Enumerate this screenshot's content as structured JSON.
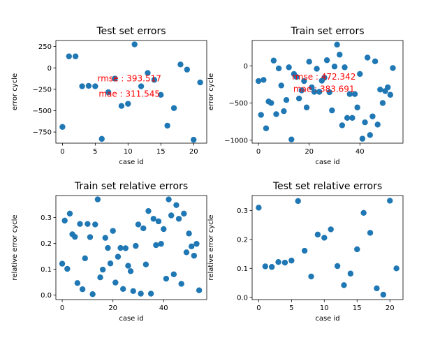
{
  "chart_data": [
    {
      "type": "scatter",
      "title": "Test set errors",
      "xlabel": "case id",
      "ylabel": "error cycle",
      "xlim": [
        -1,
        22
      ],
      "ylim": [
        -880,
        320
      ],
      "xticks": [
        0,
        5,
        10,
        15,
        20
      ],
      "yticks": [
        250,
        0,
        -250,
        -500,
        -750
      ],
      "color": "#1f77b4",
      "annotations": [
        {
          "text": "rmse : 393.517",
          "x": 10.2,
          "y": -120,
          "color": "#ff0000"
        },
        {
          "text": "mae : 311.545",
          "x": 10.2,
          "y": -300,
          "color": "#ff0000"
        }
      ],
      "points": [
        [
          0,
          -690
        ],
        [
          1,
          135
        ],
        [
          2,
          135
        ],
        [
          3,
          -215
        ],
        [
          4,
          -210
        ],
        [
          5,
          -215
        ],
        [
          6,
          -830
        ],
        [
          7,
          -285
        ],
        [
          8,
          -125
        ],
        [
          9,
          -445
        ],
        [
          10,
          -420
        ],
        [
          11,
          275
        ],
        [
          12,
          -215
        ],
        [
          13,
          -60
        ],
        [
          14,
          -140
        ],
        [
          15,
          -315
        ],
        [
          16,
          -675
        ],
        [
          17,
          -470
        ],
        [
          18,
          40
        ],
        [
          19,
          -20
        ],
        [
          20,
          -840
        ],
        [
          21,
          -170
        ]
      ]
    },
    {
      "type": "scatter",
      "title": "Train set errors",
      "xlabel": "case id",
      "ylabel": "error cycle",
      "xlim": [
        -2.5,
        57
      ],
      "ylim": [
        -1040,
        340
      ],
      "xticks": [
        0,
        20,
        40
      ],
      "yticks": [
        0,
        -500,
        -1000
      ],
      "color": "#1f77b4",
      "annotations": [
        {
          "text": "rmse : 472.342",
          "x": 25.8,
          "y": -145,
          "color": "#ff0000"
        },
        {
          "text": "mae : 383.691",
          "x": 25.8,
          "y": -310,
          "color": "#ff0000"
        }
      ],
      "points": [
        [
          0,
          -205
        ],
        [
          1,
          -660
        ],
        [
          2,
          -190
        ],
        [
          3,
          -840
        ],
        [
          4,
          -480
        ],
        [
          5,
          -500
        ],
        [
          6,
          70
        ],
        [
          7,
          -650
        ],
        [
          8,
          -35
        ],
        [
          9,
          -265
        ],
        [
          10,
          -610
        ],
        [
          11,
          -460
        ],
        [
          12,
          -20
        ],
        [
          13,
          -990
        ],
        [
          14,
          -110
        ],
        [
          15,
          -150
        ],
        [
          16,
          -440
        ],
        [
          17,
          -330
        ],
        [
          18,
          -205
        ],
        [
          19,
          -560
        ],
        [
          20,
          55
        ],
        [
          21,
          -290
        ],
        [
          22,
          -350
        ],
        [
          23,
          -40
        ],
        [
          24,
          -350
        ],
        [
          25,
          -200
        ],
        [
          26,
          -160
        ],
        [
          27,
          75
        ],
        [
          28,
          -355
        ],
        [
          29,
          -600
        ],
        [
          30,
          -10
        ],
        [
          31,
          285
        ],
        [
          32,
          150
        ],
        [
          33,
          -800
        ],
        [
          34,
          -20
        ],
        [
          35,
          -700
        ],
        [
          36,
          -380
        ],
        [
          37,
          -700
        ],
        [
          38,
          -380
        ],
        [
          39,
          -560
        ],
        [
          40,
          -110
        ],
        [
          41,
          -980
        ],
        [
          42,
          -760
        ],
        [
          43,
          110
        ],
        [
          44,
          -930
        ],
        [
          45,
          -680
        ],
        [
          46,
          60
        ],
        [
          47,
          -790
        ],
        [
          48,
          -320
        ],
        [
          49,
          -500
        ],
        [
          50,
          -340
        ],
        [
          51,
          -290
        ],
        [
          52,
          -390
        ],
        [
          53,
          -30
        ]
      ]
    },
    {
      "type": "scatter",
      "title": "Train set relative errors",
      "xlabel": "case id",
      "ylabel": "relative error cycle",
      "xlim": [
        -2.5,
        57
      ],
      "ylim": [
        -0.018,
        0.385
      ],
      "xticks": [
        0,
        20,
        40
      ],
      "yticks": [
        0.0,
        0.1,
        0.2,
        0.3
      ],
      "color": "#1f77b4",
      "points": [
        [
          0,
          0.121
        ],
        [
          1,
          0.288
        ],
        [
          2,
          0.101
        ],
        [
          3,
          0.315
        ],
        [
          4,
          0.235
        ],
        [
          5,
          0.225
        ],
        [
          6,
          0.046
        ],
        [
          7,
          0.275
        ],
        [
          8,
          0.022
        ],
        [
          9,
          0.142
        ],
        [
          10,
          0.275
        ],
        [
          11,
          0.224
        ],
        [
          12,
          0.003
        ],
        [
          13,
          0.273
        ],
        [
          14,
          0.37
        ],
        [
          15,
          0.068
        ],
        [
          16,
          0.098
        ],
        [
          17,
          0.221
        ],
        [
          18,
          0.182
        ],
        [
          19,
          0.122
        ],
        [
          20,
          0.248
        ],
        [
          21,
          0.048
        ],
        [
          22,
          0.148
        ],
        [
          23,
          0.182
        ],
        [
          24,
          0.023
        ],
        [
          25,
          0.181
        ],
        [
          26,
          0.113
        ],
        [
          27,
          0.092
        ],
        [
          28,
          0.015
        ],
        [
          29,
          0.19
        ],
        [
          30,
          0.273
        ],
        [
          31,
          0.005
        ],
        [
          32,
          0.258
        ],
        [
          33,
          0.118
        ],
        [
          34,
          0.325
        ],
        [
          35,
          0.005
        ],
        [
          36,
          0.295
        ],
        [
          37,
          0.193
        ],
        [
          38,
          0.285
        ],
        [
          39,
          0.198
        ],
        [
          40,
          0.255
        ],
        [
          41,
          0.063
        ],
        [
          42,
          0.37
        ],
        [
          43,
          0.308
        ],
        [
          44,
          0.08
        ],
        [
          45,
          0.348
        ],
        [
          46,
          0.295
        ],
        [
          47,
          0.043
        ],
        [
          48,
          0.315
        ],
        [
          49,
          0.165
        ],
        [
          50,
          0.238
        ],
        [
          51,
          0.188
        ],
        [
          52,
          0.152
        ],
        [
          53,
          0.198
        ],
        [
          54,
          0.018
        ]
      ]
    },
    {
      "type": "scatter",
      "title": "Test set relative errors",
      "xlabel": "case id",
      "ylabel": "relative error cycle",
      "xlim": [
        -1,
        22
      ],
      "ylim": [
        -0.008,
        0.352
      ],
      "xticks": [
        0,
        5,
        10,
        15,
        20
      ],
      "yticks": [
        0.0,
        0.1,
        0.2,
        0.3
      ],
      "color": "#1f77b4",
      "points": [
        [
          0,
          0.31
        ],
        [
          1,
          0.107
        ],
        [
          2,
          0.105
        ],
        [
          3,
          0.122
        ],
        [
          4,
          0.12
        ],
        [
          5,
          0.127
        ],
        [
          6,
          0.333
        ],
        [
          7,
          0.161
        ],
        [
          8,
          0.072
        ],
        [
          9,
          0.217
        ],
        [
          10,
          0.206
        ],
        [
          11,
          0.235
        ],
        [
          12,
          0.108
        ],
        [
          13,
          0.042
        ],
        [
          14,
          0.082
        ],
        [
          15,
          0.166
        ],
        [
          16,
          0.292
        ],
        [
          17,
          0.223
        ],
        [
          18,
          0.031
        ],
        [
          19,
          0.009
        ],
        [
          20,
          0.334
        ],
        [
          21,
          0.1
        ]
      ]
    }
  ]
}
